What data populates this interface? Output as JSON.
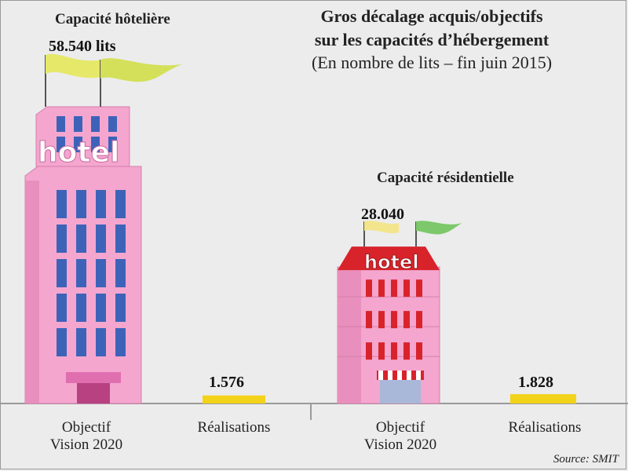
{
  "title": {
    "line1": "Gros décalage acquis/objectifs",
    "line2": "sur les capacités d’hébergement",
    "subtitle": "(En nombre de lits – fin juin 2015)"
  },
  "source": "Source: SMIT",
  "hotel_sign": "hotel",
  "colors": {
    "bar_pink": "#f4a6cf",
    "bar_yellow": "#f3d21a",
    "window_blue": "#3d63b8",
    "window_red": "#d8232a",
    "flag_yellow": "#e6e86a",
    "flag_green": "#7cc86a"
  },
  "chart_data": [
    {
      "type": "bar",
      "title": "Capacité hôtelière",
      "categories": [
        "Objectif Vision 2020",
        "Réalisations"
      ],
      "values": [
        58540,
        1576
      ],
      "value_labels": [
        "58.540 lits",
        "1.576"
      ]
    },
    {
      "type": "bar",
      "title": "Capacité résidentielle",
      "categories": [
        "Objectif Vision 2020",
        "Réalisations"
      ],
      "values": [
        28040,
        1828
      ],
      "value_labels": [
        "28.040",
        "1.828"
      ]
    }
  ],
  "category_lines": {
    "objectif": [
      "Objectif",
      "Vision 2020"
    ],
    "realisations": [
      "Réalisations"
    ]
  }
}
